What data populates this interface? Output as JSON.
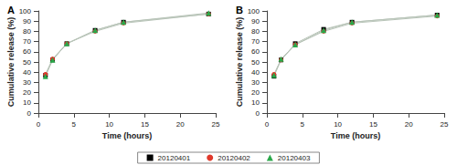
{
  "chart_data": [
    {
      "type": "line",
      "title": "A",
      "x_label": "Time (hours)",
      "y_label": "Cumulative release (%)",
      "xlim": [
        0,
        25
      ],
      "xticks": [
        0,
        5,
        10,
        15,
        20,
        25
      ],
      "ylim": [
        0,
        100
      ],
      "yticks": [
        0,
        10,
        20,
        30,
        40,
        50,
        60,
        70,
        80,
        90,
        100
      ],
      "grid": false,
      "legend": "bottom",
      "series": [
        {
          "name": "20120401",
          "color": "#000000",
          "marker": "square",
          "line_style": "solid",
          "x": [
            1,
            2,
            4,
            8,
            12,
            24
          ],
          "values": [
            37,
            52,
            68,
            81,
            89,
            97
          ]
        },
        {
          "name": "20120402",
          "color": "#e0392b",
          "marker": "circle",
          "line_style": "solid",
          "x": [
            1,
            2,
            4,
            8,
            12,
            24
          ],
          "values": [
            38,
            53,
            68,
            80,
            88,
            97
          ]
        },
        {
          "name": "20120403",
          "color": "#2aa84a",
          "marker": "triangle",
          "line_style": "solid",
          "x": [
            1,
            2,
            4,
            8,
            12,
            24
          ],
          "values": [
            36,
            52,
            68,
            81,
            89,
            98
          ]
        }
      ]
    },
    {
      "type": "line",
      "title": "B",
      "x_label": "Time (hours)",
      "y_label": "Cumulative release (%)",
      "xlim": [
        0,
        25
      ],
      "xticks": [
        0,
        5,
        10,
        15,
        20,
        25
      ],
      "ylim": [
        0,
        100
      ],
      "yticks": [
        0,
        10,
        20,
        30,
        40,
        50,
        60,
        70,
        80,
        90,
        100
      ],
      "grid": false,
      "legend": "bottom",
      "series": [
        {
          "name": "20120401",
          "color": "#000000",
          "marker": "square",
          "line_style": "solid",
          "x": [
            1,
            2,
            4,
            8,
            12,
            24
          ],
          "values": [
            36,
            52,
            68,
            82,
            89,
            96
          ]
        },
        {
          "name": "20120402",
          "color": "#e0392b",
          "marker": "circle",
          "line_style": "solid",
          "x": [
            1,
            2,
            4,
            8,
            12,
            24
          ],
          "values": [
            38,
            52,
            67,
            80,
            88,
            95
          ]
        },
        {
          "name": "20120403",
          "color": "#2aa84a",
          "marker": "triangle",
          "line_style": "solid",
          "x": [
            1,
            2,
            4,
            8,
            12,
            24
          ],
          "values": [
            37,
            53,
            67,
            81,
            89,
            96
          ]
        }
      ]
    }
  ]
}
